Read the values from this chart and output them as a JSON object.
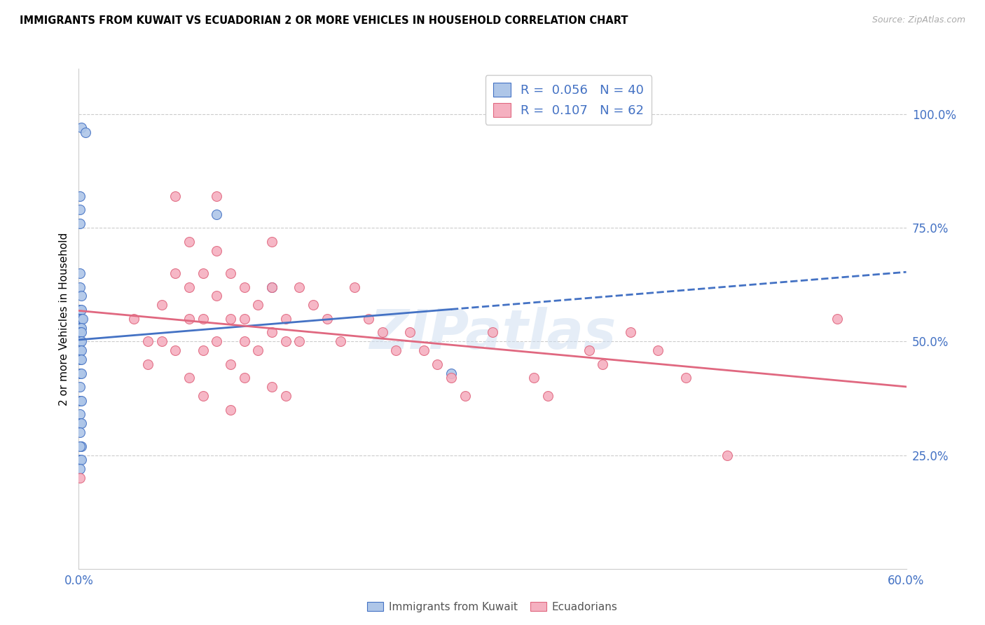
{
  "title": "IMMIGRANTS FROM KUWAIT VS ECUADORIAN 2 OR MORE VEHICLES IN HOUSEHOLD CORRELATION CHART",
  "source": "Source: ZipAtlas.com",
  "ylabel": "2 or more Vehicles in Household",
  "watermark": "ZIPatlas",
  "xmin": 0.0,
  "xmax": 0.6,
  "ymin": 0.0,
  "ymax": 1.1,
  "blue_face": "#aec6e8",
  "blue_edge": "#4472c4",
  "pink_face": "#f5b0c0",
  "pink_edge": "#e06880",
  "blue_line": "#4472c4",
  "pink_line": "#e06880",
  "label_color": "#4472c4",
  "grid_color": "#cccccc",
  "yticks": [
    0.0,
    0.25,
    0.5,
    0.75,
    1.0
  ],
  "ytick_labels_right": [
    "",
    "25.0%",
    "50.0%",
    "75.0%",
    "100.0%"
  ],
  "xtick_labels": [
    "0.0%",
    "60.0%"
  ],
  "xtick_vals": [
    0.0,
    0.6
  ],
  "legend_label1": "Immigrants from Kuwait",
  "legend_label2": "Ecuadorians",
  "blue_x": [
    0.002,
    0.005,
    0.001,
    0.001,
    0.001,
    0.001,
    0.001,
    0.002,
    0.001,
    0.002,
    0.001,
    0.002,
    0.003,
    0.001,
    0.002,
    0.001,
    0.002,
    0.001,
    0.002,
    0.001,
    0.002,
    0.001,
    0.002,
    0.001,
    0.002,
    0.001,
    0.001,
    0.002,
    0.001,
    0.001,
    0.002,
    0.001,
    0.002,
    0.001,
    0.001,
    0.002,
    0.001,
    0.1,
    0.14,
    0.27
  ],
  "blue_y": [
    0.97,
    0.96,
    0.82,
    0.79,
    0.76,
    0.65,
    0.62,
    0.6,
    0.57,
    0.57,
    0.55,
    0.55,
    0.55,
    0.53,
    0.53,
    0.52,
    0.52,
    0.5,
    0.5,
    0.48,
    0.48,
    0.46,
    0.46,
    0.43,
    0.43,
    0.4,
    0.37,
    0.37,
    0.34,
    0.32,
    0.32,
    0.3,
    0.27,
    0.27,
    0.24,
    0.24,
    0.22,
    0.78,
    0.62,
    0.43
  ],
  "pink_x": [
    0.001,
    0.04,
    0.05,
    0.05,
    0.06,
    0.06,
    0.07,
    0.07,
    0.07,
    0.08,
    0.08,
    0.08,
    0.08,
    0.09,
    0.09,
    0.09,
    0.09,
    0.1,
    0.1,
    0.1,
    0.1,
    0.11,
    0.11,
    0.11,
    0.11,
    0.12,
    0.12,
    0.12,
    0.12,
    0.13,
    0.13,
    0.14,
    0.14,
    0.14,
    0.14,
    0.15,
    0.15,
    0.15,
    0.16,
    0.16,
    0.17,
    0.18,
    0.19,
    0.2,
    0.21,
    0.22,
    0.23,
    0.24,
    0.25,
    0.26,
    0.27,
    0.28,
    0.3,
    0.33,
    0.34,
    0.37,
    0.38,
    0.4,
    0.42,
    0.44,
    0.47,
    0.55
  ],
  "pink_y": [
    0.2,
    0.55,
    0.5,
    0.45,
    0.58,
    0.5,
    0.82,
    0.65,
    0.48,
    0.72,
    0.62,
    0.55,
    0.42,
    0.65,
    0.55,
    0.48,
    0.38,
    0.82,
    0.7,
    0.6,
    0.5,
    0.65,
    0.55,
    0.45,
    0.35,
    0.62,
    0.55,
    0.5,
    0.42,
    0.58,
    0.48,
    0.72,
    0.62,
    0.52,
    0.4,
    0.55,
    0.5,
    0.38,
    0.62,
    0.5,
    0.58,
    0.55,
    0.5,
    0.62,
    0.55,
    0.52,
    0.48,
    0.52,
    0.48,
    0.45,
    0.42,
    0.38,
    0.52,
    0.42,
    0.38,
    0.48,
    0.45,
    0.52,
    0.48,
    0.42,
    0.25,
    0.55
  ]
}
